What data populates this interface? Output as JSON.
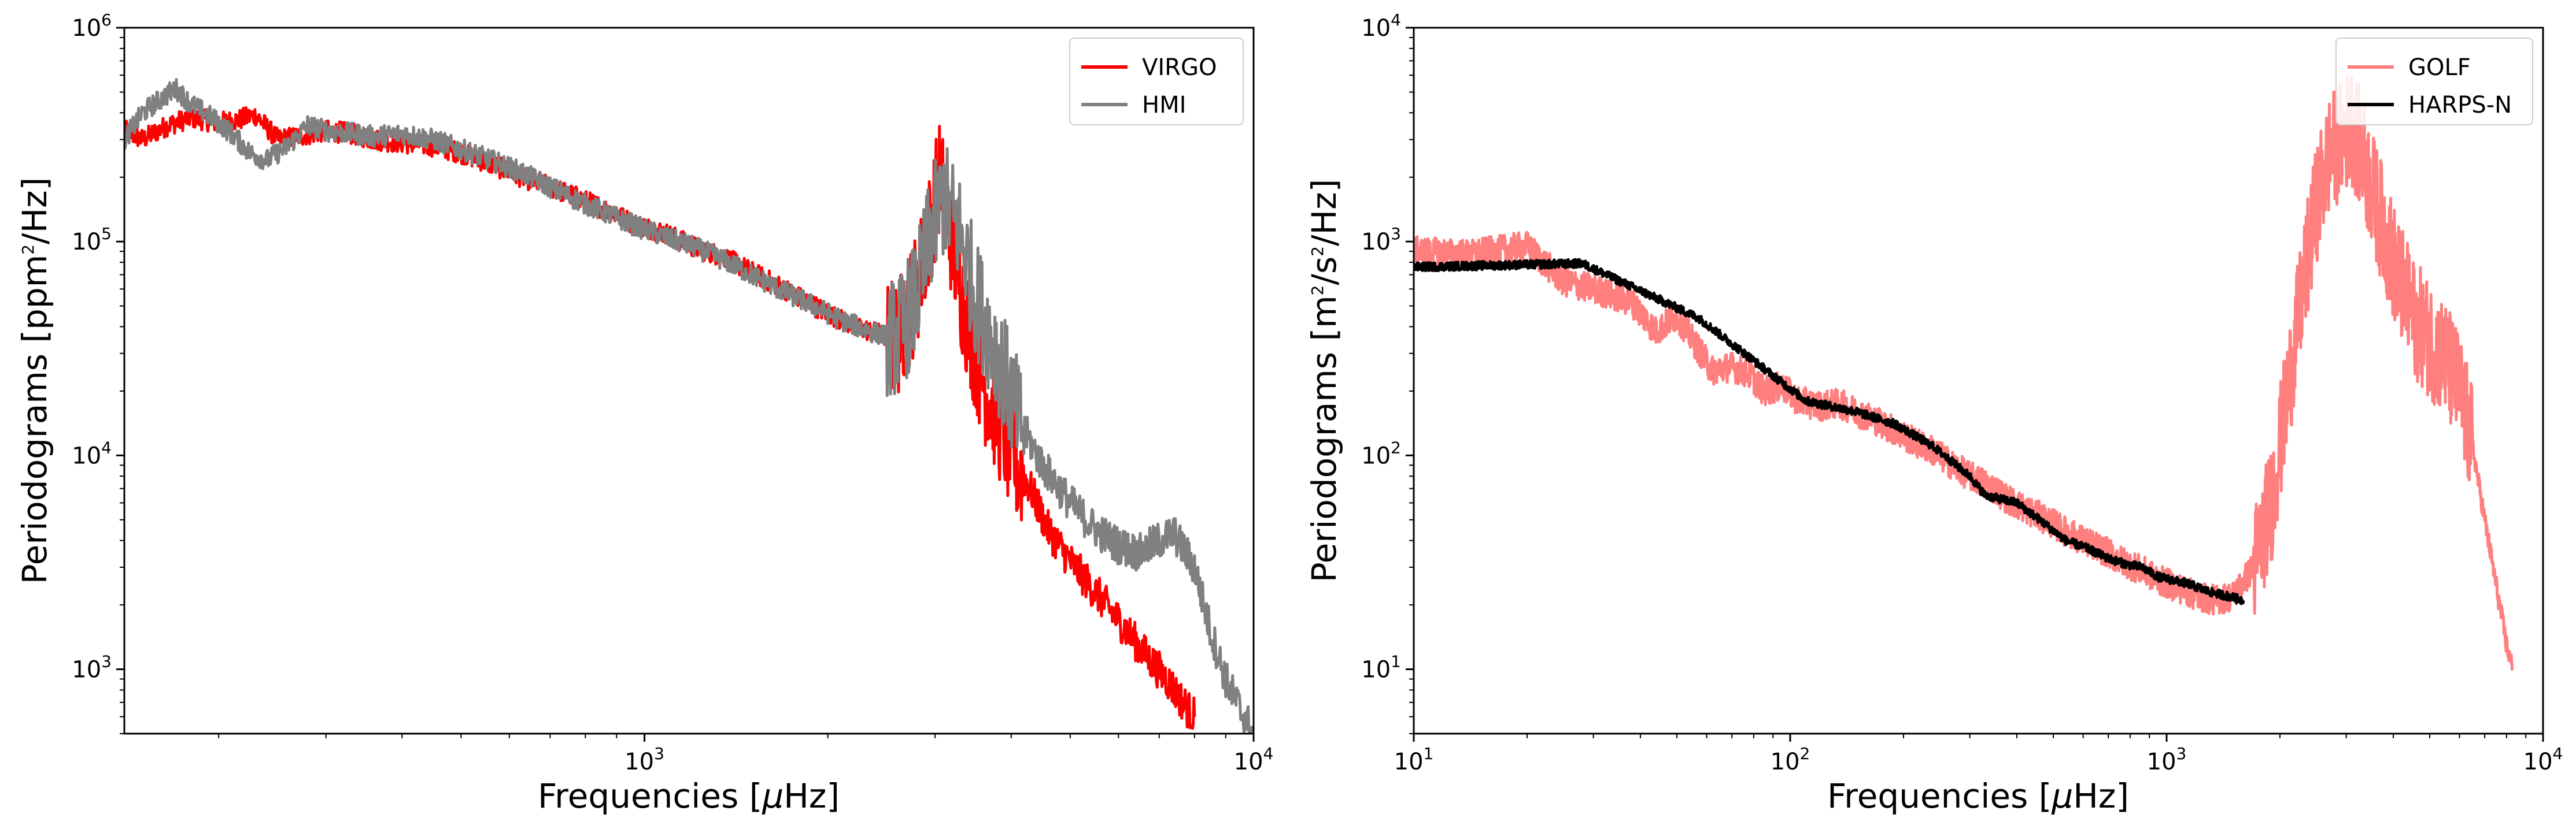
{
  "chart_data": [
    {
      "type": "line",
      "id": "left",
      "xscale": "log",
      "yscale": "log",
      "xlim": [
        140,
        10000
      ],
      "ylim": [
        500,
        1000000
      ],
      "xlabel_prefix": "Frequencies [",
      "xlabel_mu": "μ",
      "xlabel_suffix": "Hz]",
      "ylabel_prefix": "Periodograms [ppm",
      "ylabel_sup": "2",
      "ylabel_suffix": "/Hz]",
      "xticks": [
        {
          "value": 1000,
          "base": "10",
          "exp": "3"
        },
        {
          "value": 10000,
          "base": "10",
          "exp": "4"
        }
      ],
      "yticks": [
        {
          "value": 1000,
          "base": "10",
          "exp": "3"
        },
        {
          "value": 10000,
          "base": "10",
          "exp": "4"
        },
        {
          "value": 100000,
          "base": "10",
          "exp": "5"
        },
        {
          "value": 1000000,
          "base": "10",
          "exp": "6"
        }
      ],
      "legend_position": "top-right",
      "series": [
        {
          "name": "VIRGO",
          "color": "#ff0000",
          "width": 5,
          "x": [
            140,
            150,
            165,
            180,
            200,
            215,
            230,
            250,
            270,
            300,
            330,
            360,
            400,
            450,
            500,
            560,
            630,
            700,
            780,
            870,
            970,
            1080,
            1200,
            1350,
            1500,
            1700,
            1900,
            2100,
            2350,
            2600,
            2800,
            2950,
            3050,
            3150,
            3300,
            3450,
            3600,
            3800,
            4000,
            4300,
            4600,
            5000,
            5500,
            6000,
            6600,
            7200,
            7800,
            8000
          ],
          "y": [
            330000,
            300000,
            350000,
            380000,
            360000,
            370000,
            390000,
            300000,
            310000,
            330000,
            320000,
            300000,
            290000,
            280000,
            260000,
            230000,
            200000,
            180000,
            160000,
            140000,
            120000,
            110000,
            95000,
            85000,
            72000,
            60000,
            50000,
            43000,
            38000,
            35000,
            60000,
            120000,
            200000,
            130000,
            60000,
            35000,
            22000,
            15000,
            10000,
            7000,
            4500,
            3200,
            2300,
            1700,
            1200,
            900,
            650,
            600
          ]
        },
        {
          "name": "HMI",
          "color": "#808080",
          "width": 5,
          "x": [
            140,
            150,
            160,
            170,
            180,
            195,
            210,
            225,
            240,
            260,
            280,
            300,
            330,
            360,
            400,
            450,
            500,
            560,
            630,
            700,
            780,
            870,
            970,
            1080,
            1200,
            1350,
            1500,
            1700,
            1900,
            2100,
            2350,
            2600,
            2800,
            2950,
            3100,
            3300,
            3500,
            3800,
            4100,
            4500,
            5000,
            5500,
            6000,
            6500,
            7000,
            7400,
            8000,
            8500,
            9000,
            9500,
            10000
          ],
          "y": [
            300000,
            400000,
            460000,
            520000,
            440000,
            380000,
            320000,
            260000,
            240000,
            280000,
            350000,
            330000,
            320000,
            310000,
            320000,
            300000,
            270000,
            240000,
            210000,
            180000,
            155000,
            135000,
            118000,
            105000,
            95000,
            82000,
            70000,
            58000,
            50000,
            43000,
            38000,
            35000,
            55000,
            110000,
            160000,
            110000,
            55000,
            30000,
            15000,
            9000,
            6000,
            4500,
            3800,
            3500,
            4000,
            4300,
            3000,
            1500,
            900,
            650,
            500
          ]
        }
      ]
    },
    {
      "type": "line",
      "id": "right",
      "xscale": "log",
      "yscale": "log",
      "xlim": [
        10,
        10000
      ],
      "ylim": [
        5,
        10000
      ],
      "xlabel_prefix": "Frequencies [",
      "xlabel_mu": "μ",
      "xlabel_suffix": "Hz]",
      "ylabel_prefix": "Periodograms [m",
      "ylabel_sup": "2",
      "ylabel_mid": "/s",
      "ylabel_sup2": "2",
      "ylabel_suffix": "/Hz]",
      "xticks": [
        {
          "value": 10,
          "base": "10",
          "exp": "1"
        },
        {
          "value": 100,
          "base": "10",
          "exp": "2"
        },
        {
          "value": 1000,
          "base": "10",
          "exp": "3"
        },
        {
          "value": 10000,
          "base": "10",
          "exp": "4"
        }
      ],
      "yticks": [
        {
          "value": 10,
          "base": "10",
          "exp": "1"
        },
        {
          "value": 100,
          "base": "10",
          "exp": "2"
        },
        {
          "value": 1000,
          "base": "10",
          "exp": "3"
        },
        {
          "value": 10000,
          "base": "10",
          "exp": "4"
        }
      ],
      "legend_position": "top-right",
      "series": [
        {
          "name": "GOLF",
          "color": "#ff7f7f",
          "width": 5,
          "x": [
            10,
            14,
            20,
            25,
            30,
            38,
            44,
            50,
            56,
            62,
            70,
            78,
            85,
            95,
            105,
            120,
            135,
            150,
            170,
            190,
            215,
            240,
            270,
            300,
            340,
            380,
            430,
            480,
            540,
            600,
            680,
            760,
            860,
            960,
            1080,
            1200,
            1350,
            1500,
            1700,
            1900,
            2100,
            2300,
            2500,
            2700,
            2900,
            3100,
            3300,
            3500,
            3800,
            4100,
            4500,
            5000,
            5500,
            6000,
            6500,
            7000,
            7500,
            8000,
            8300
          ],
          "y": [
            900,
            870,
            950,
            650,
            600,
            520,
            380,
            450,
            330,
            250,
            260,
            240,
            200,
            210,
            180,
            170,
            175,
            160,
            145,
            130,
            115,
            105,
            90,
            80,
            72,
            62,
            55,
            50,
            44,
            40,
            36,
            32,
            29,
            26,
            24,
            22,
            21,
            22,
            30,
            60,
            200,
            600,
            1500,
            2500,
            3000,
            3500,
            2600,
            1800,
            1100,
            700,
            450,
            350,
            280,
            200,
            110,
            50,
            25,
            13,
            10
          ]
        },
        {
          "name": "HARPS-N",
          "color": "#000000",
          "width": 5,
          "x": [
            10,
            28,
            57,
            110,
            150,
            190,
            240,
            300,
            330,
            400,
            460,
            540,
            610,
            700,
            780,
            860,
            950,
            1050,
            1150,
            1300,
            1450,
            1600
          ],
          "y": [
            760,
            790,
            440,
            180,
            160,
            140,
            110,
            80,
            65,
            60,
            50,
            40,
            37,
            33,
            31,
            30,
            27,
            26,
            25,
            23,
            22,
            21
          ]
        }
      ]
    }
  ]
}
